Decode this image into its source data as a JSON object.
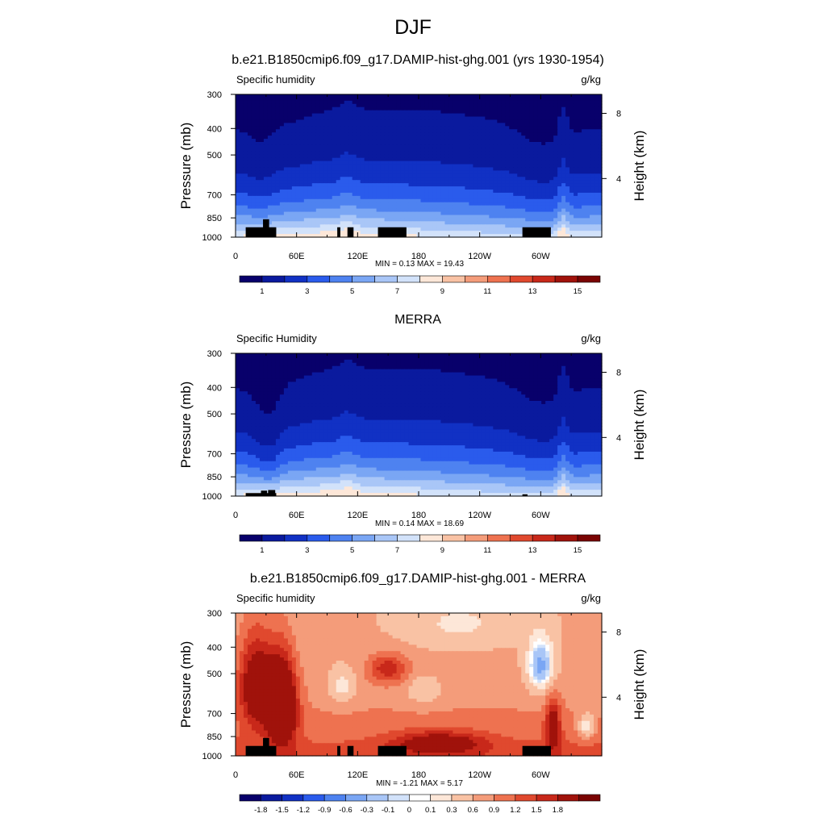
{
  "main_title": "DJF",
  "colors": {
    "abs_ramp": [
      "#08006b",
      "#0a1a9e",
      "#1131c4",
      "#2a5bec",
      "#4e82f0",
      "#7aa6f4",
      "#a9c6f7",
      "#d2e2fa",
      "#fde7d8",
      "#f9c2a4",
      "#f49c7a",
      "#ee7250",
      "#e0492e",
      "#c8281a",
      "#a0120b",
      "#7a0403"
    ],
    "diff_ramp": [
      "#08006b",
      "#0a1a9e",
      "#1131c4",
      "#2a5bec",
      "#4e82f0",
      "#7aa6f4",
      "#a9c6f7",
      "#d2e2fa",
      "#ffffff",
      "#fde7d8",
      "#f9c2a4",
      "#f49c7a",
      "#ee7250",
      "#e0492e",
      "#c8281a",
      "#a0120b",
      "#7a0403"
    ],
    "terrain": "#000000"
  },
  "chart_data": [
    {
      "type": "heatmap",
      "title": "b.e21.B1850cmip6.f09_g17.DAMIP-hist-ghg.001 (yrs 1930-1954)",
      "left_label": "Specific humidity",
      "units": "g/kg",
      "ylabel": "Pressure (mb)",
      "ylabel_right": "Height (km)",
      "x_ticks": [
        "0",
        "60E",
        "120E",
        "180",
        "120W",
        "60W"
      ],
      "x_tick_values": [
        0,
        60,
        120,
        180,
        240,
        300
      ],
      "xlim": [
        0,
        360
      ],
      "y_ticks": [
        "300",
        "400",
        "500",
        "700",
        "850",
        "1000"
      ],
      "y_tick_values": [
        300,
        400,
        500,
        700,
        850,
        1000
      ],
      "ylim": [
        300,
        1000
      ],
      "y_scale": "log",
      "right_ticks": [
        "8",
        "4"
      ],
      "right_tick_pressures": [
        352,
        610
      ],
      "stats": "MIN =   0.13  MAX =  19.43",
      "colorbar_labels": [
        "1",
        "3",
        "5",
        "7",
        "9",
        "11",
        "13",
        "15"
      ],
      "colorbar_levels": [
        1,
        3,
        5,
        7,
        9,
        11,
        13,
        15
      ],
      "min": 0.13,
      "max": 19.43,
      "field": "model"
    },
    {
      "type": "heatmap",
      "title": "MERRA",
      "left_label": "Specific Humidity",
      "units": "g/kg",
      "ylabel": "Pressure (mb)",
      "ylabel_right": "Height (km)",
      "x_ticks": [
        "0",
        "60E",
        "120E",
        "180",
        "120W",
        "60W"
      ],
      "x_tick_values": [
        0,
        60,
        120,
        180,
        240,
        300
      ],
      "xlim": [
        0,
        360
      ],
      "y_ticks": [
        "300",
        "400",
        "500",
        "700",
        "850",
        "1000"
      ],
      "y_tick_values": [
        300,
        400,
        500,
        700,
        850,
        1000
      ],
      "ylim": [
        300,
        1000
      ],
      "y_scale": "log",
      "right_ticks": [
        "8",
        "4"
      ],
      "right_tick_pressures": [
        352,
        610
      ],
      "stats": "MIN =   0.14  MAX =  18.69",
      "colorbar_labels": [
        "1",
        "3",
        "5",
        "7",
        "9",
        "11",
        "13",
        "15"
      ],
      "colorbar_levels": [
        1,
        3,
        5,
        7,
        9,
        11,
        13,
        15
      ],
      "min": 0.14,
      "max": 18.69,
      "field": "obs"
    },
    {
      "type": "heatmap",
      "title": "b.e21.B1850cmip6.f09_g17.DAMIP-hist-ghg.001 - MERRA",
      "left_label": "Specific humidity",
      "units": "g/kg",
      "ylabel": "Pressure (mb)",
      "ylabel_right": "Height (km)",
      "x_ticks": [
        "0",
        "60E",
        "120E",
        "180",
        "120W",
        "60W"
      ],
      "x_tick_values": [
        0,
        60,
        120,
        180,
        240,
        300
      ],
      "xlim": [
        0,
        360
      ],
      "y_ticks": [
        "300",
        "400",
        "500",
        "700",
        "850",
        "1000"
      ],
      "y_tick_values": [
        300,
        400,
        500,
        700,
        850,
        1000
      ],
      "ylim": [
        300,
        1000
      ],
      "y_scale": "log",
      "right_ticks": [
        "8",
        "4"
      ],
      "right_tick_pressures": [
        352,
        610
      ],
      "stats": "MIN =  -1.21  MAX =   5.17",
      "colorbar_labels": [
        "-1.8",
        "-1.5",
        "-1.2",
        "-0.9",
        "-0.6",
        "-0.3",
        "-0.1",
        "0",
        "0.1",
        "0.3",
        "0.6",
        "0.9",
        "1.2",
        "1.5",
        "1.8"
      ],
      "colorbar_levels": [
        -1.8,
        -1.5,
        -1.2,
        -0.9,
        -0.6,
        -0.3,
        -0.1,
        0,
        0.1,
        0.3,
        0.6,
        0.9,
        1.2,
        1.5,
        1.8
      ],
      "min": -1.21,
      "max": 5.17,
      "field": "diff"
    }
  ]
}
